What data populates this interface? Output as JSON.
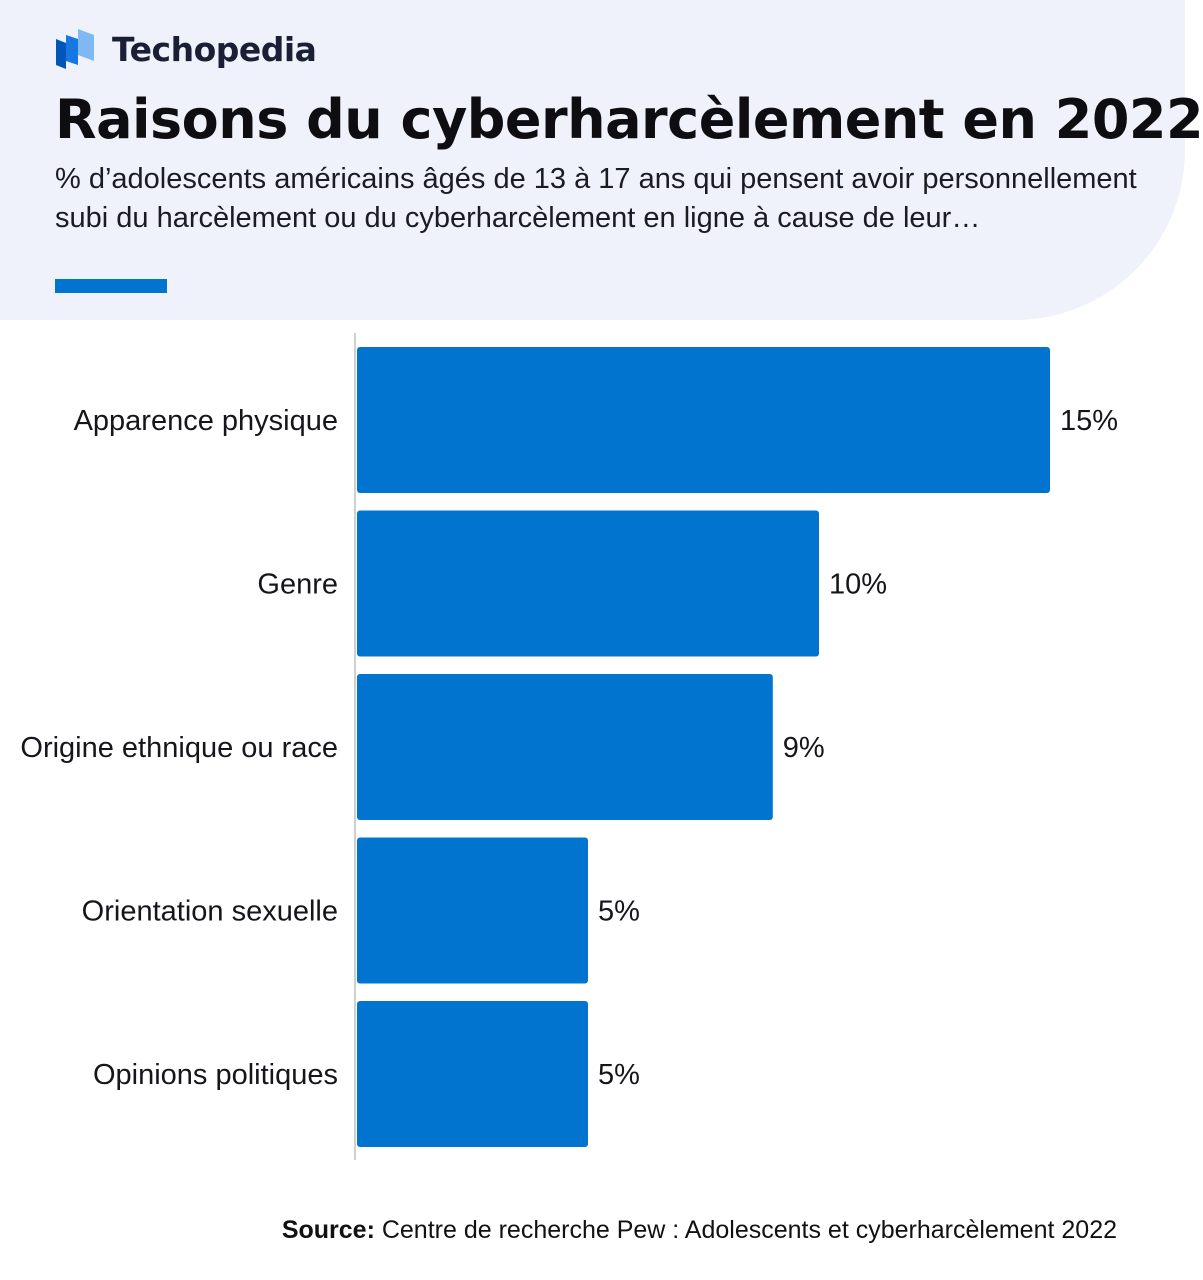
{
  "brand": {
    "name": "Techopedia"
  },
  "header": {
    "title": "Raisons du cyberharcèlement en 2022",
    "subtitle": "% d’adolescents américains âgés de 13 à 17 ans qui pensent avoir personnellement subi du harcèlement ou du cyberharcèlement en ligne à cause de leur…"
  },
  "colors": {
    "bar": "#0074cf",
    "header_background": "#eff2fa",
    "accent": "#0074cf"
  },
  "chart_data": {
    "type": "bar",
    "orientation": "horizontal",
    "categories": [
      "Apparence physique",
      "Genre",
      "Origine ethnique ou race",
      "Orientation sexuelle",
      "Opinions politiques"
    ],
    "values": [
      15,
      10,
      9,
      5,
      5
    ],
    "value_labels": [
      "15%",
      "10%",
      "9%",
      "5%",
      "5%"
    ],
    "unit": "%",
    "xlim": [
      0,
      15
    ],
    "grid": false,
    "legend": "none"
  },
  "footer": {
    "source_label": "Source:",
    "source_text": " Centre de recherche Pew : Adolescents et cyberharcèlement 2022"
  }
}
